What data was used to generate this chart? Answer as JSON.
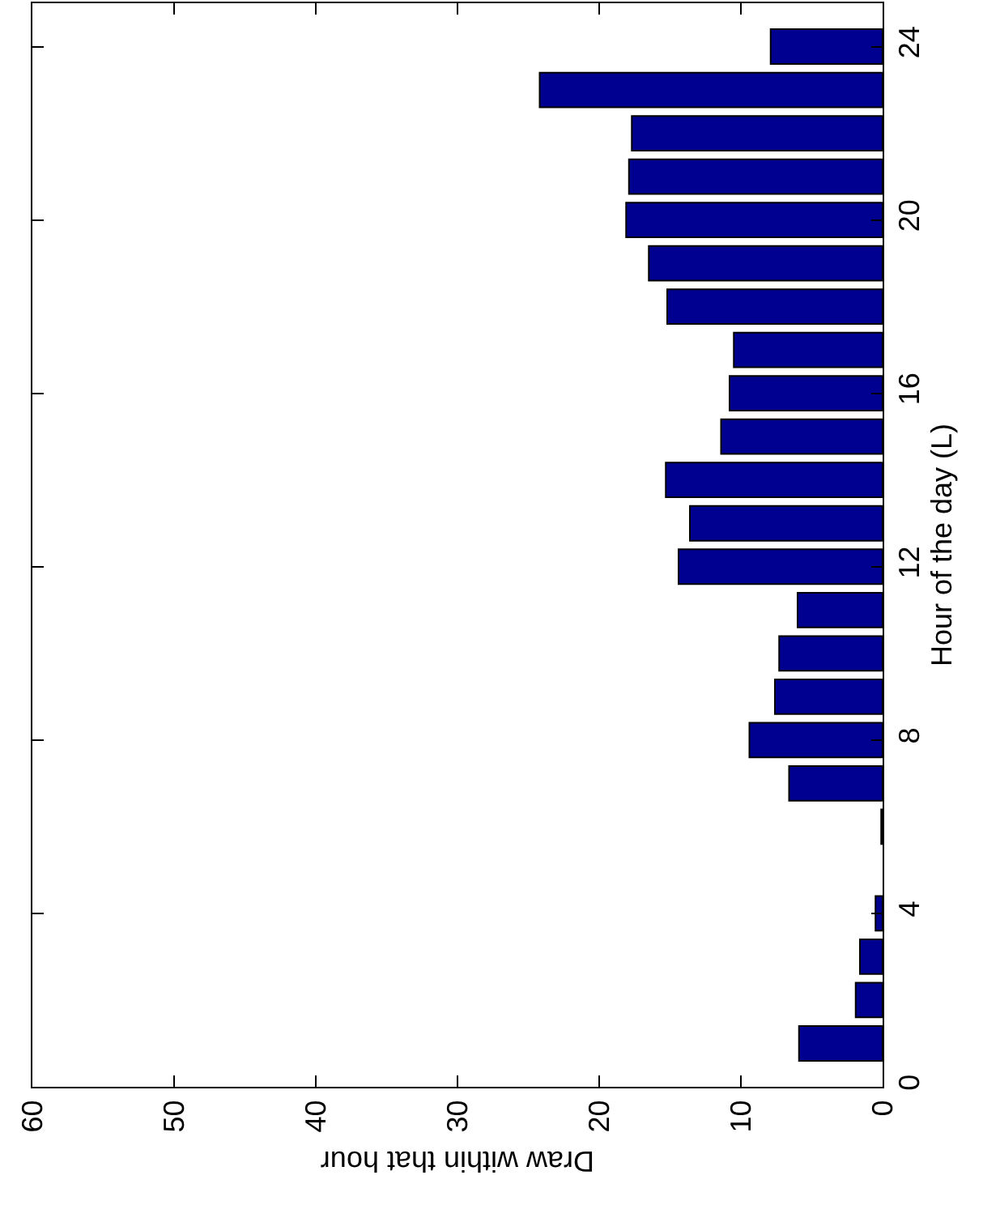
{
  "chart_data": {
    "type": "bar",
    "orientation": "horizontal",
    "xlabel": "Draw within that hour",
    "ylabel": "Hour of the day (L)",
    "x": [
      1,
      2,
      3,
      4,
      5,
      6,
      7,
      8,
      9,
      10,
      11,
      12,
      13,
      14,
      15,
      16,
      17,
      18,
      19,
      20,
      21,
      22,
      23,
      24
    ],
    "values": [
      5.9,
      1.9,
      1.6,
      0.5,
      null,
      0.1,
      6.6,
      9.4,
      7.6,
      7.3,
      6.0,
      14.4,
      13.6,
      15.3,
      11.4,
      10.8,
      10.5,
      15.2,
      16.5,
      18.1,
      17.9,
      17.7,
      24.2,
      7.9
    ],
    "color": "#000090",
    "xlim": [
      60,
      0
    ],
    "xticks": [
      0,
      10,
      20,
      30,
      40,
      50,
      60
    ],
    "ylim": [
      0,
      25
    ],
    "yticks": [
      0,
      4,
      8,
      12,
      16,
      20,
      24
    ],
    "grid": false
  }
}
